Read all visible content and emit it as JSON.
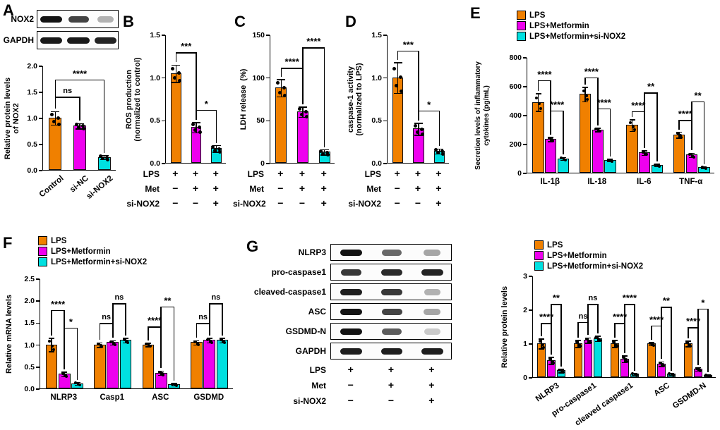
{
  "figure": {
    "background": "#ffffff",
    "series_colors": [
      "#F08000",
      "#EE00EE",
      "#00E0E0"
    ],
    "legend_labels": [
      "LPS",
      "LPS+Metformin",
      "LPS+Metformin+si-NOX2"
    ]
  },
  "panel_labels": {
    "A": "A",
    "B": "B",
    "C": "C",
    "D": "D",
    "E": "E",
    "F": "F",
    "G": "G"
  },
  "blots": {
    "A": {
      "rows": [
        {
          "label": "NOX2",
          "bands": [
            0.95,
            0.75,
            0.3
          ]
        },
        {
          "label": "GAPDH",
          "bands": [
            0.92,
            0.92,
            0.88
          ]
        }
      ]
    },
    "G": {
      "rows": [
        {
          "label": "NLRP3",
          "bands": [
            0.95,
            0.6,
            0.35
          ]
        },
        {
          "label": "pro-caspase1",
          "bands": [
            0.8,
            0.85,
            0.88
          ]
        },
        {
          "label": "cleaved-caspase1",
          "bands": [
            0.9,
            0.8,
            0.3
          ]
        },
        {
          "label": "ASC",
          "bands": [
            0.95,
            0.75,
            0.35
          ]
        },
        {
          "label": "GSDMD-N",
          "bands": [
            0.95,
            0.65,
            0.2
          ]
        },
        {
          "label": "GAPDH",
          "bands": [
            0.9,
            0.9,
            0.9
          ]
        }
      ],
      "treatment": [
        {
          "label": "LPS",
          "signs": [
            "+",
            "+",
            "+"
          ]
        },
        {
          "label": "Met",
          "signs": [
            "−",
            "+",
            "+"
          ]
        },
        {
          "label": "si-NOX2",
          "signs": [
            "−",
            "−",
            "+"
          ]
        }
      ]
    }
  },
  "chart_data": [
    {
      "id": "A",
      "type": "bar",
      "ylabel": "Relative protein levels\nof NOX2",
      "ylim": [
        0,
        2
      ],
      "yticks": [
        "0.0",
        "0.5",
        "1.0",
        "1.5",
        "2.0"
      ],
      "categories": [
        "Control",
        "si-NC",
        "si-NOX2"
      ],
      "cat_rotate": 40,
      "values": [
        1.0,
        0.85,
        0.25
      ],
      "errors": [
        0.13,
        0.05,
        0.04
      ],
      "significance": [
        {
          "b1": 0,
          "b2": 1,
          "y": 1.42,
          "label": "ns"
        },
        {
          "b1": 0,
          "b2": 2,
          "y": 1.75,
          "label": "****"
        }
      ]
    },
    {
      "id": "B",
      "type": "bar",
      "ylabel": "ROS production\n(normalized to control)",
      "ylim": [
        0,
        1.5
      ],
      "yticks": [
        "0.0",
        "0.5",
        "1.0",
        "1.5"
      ],
      "values": [
        1.05,
        0.42,
        0.17
      ],
      "errors": [
        0.1,
        0.06,
        0.04
      ],
      "treatment": [
        {
          "label": "LPS",
          "signs": [
            "+",
            "+",
            "+"
          ]
        },
        {
          "label": "Met",
          "signs": [
            "−",
            "+",
            "+"
          ]
        },
        {
          "label": "si-NOX2",
          "signs": [
            "−",
            "−",
            "+"
          ]
        }
      ],
      "significance": [
        {
          "b1": 0,
          "b2": 1,
          "y": 1.3,
          "label": "***"
        },
        {
          "b1": 1,
          "b2": 2,
          "y": 0.63,
          "label": "*"
        }
      ]
    },
    {
      "id": "C",
      "type": "bar",
      "ylabel": "LDH release  (%)",
      "ylim": [
        0,
        150
      ],
      "yticks": [
        "0",
        "50",
        "100",
        "150"
      ],
      "values": [
        88,
        60,
        13
      ],
      "errors": [
        10,
        6,
        3
      ],
      "treatment": [
        {
          "label": "LPS",
          "signs": [
            "+",
            "+",
            "+"
          ]
        },
        {
          "label": "Met",
          "signs": [
            "−",
            "+",
            "+"
          ]
        },
        {
          "label": "si-NOX2",
          "signs": [
            "−",
            "−",
            "+"
          ]
        }
      ],
      "significance": [
        {
          "b1": 0,
          "b2": 1,
          "y": 112,
          "label": "****"
        },
        {
          "b1": 1,
          "b2": 2,
          "y": 136,
          "label": "****"
        }
      ]
    },
    {
      "id": "D",
      "type": "bar",
      "ylabel": "caspase-1 activity\n(normalized to LPS)",
      "ylim": [
        0,
        1.5
      ],
      "yticks": [
        "0.0",
        "0.5",
        "1.0",
        "1.5"
      ],
      "values": [
        1.0,
        0.4,
        0.14
      ],
      "errors": [
        0.18,
        0.07,
        0.03
      ],
      "treatment": [
        {
          "label": "LPS",
          "signs": [
            "+",
            "+",
            "+"
          ]
        },
        {
          "label": "Met",
          "signs": [
            "−",
            "+",
            "+"
          ]
        },
        {
          "label": "si-NOX2",
          "signs": [
            "−",
            "−",
            "+"
          ]
        }
      ],
      "significance": [
        {
          "b1": 0,
          "b2": 1,
          "y": 1.32,
          "label": "***"
        },
        {
          "b1": 1,
          "b2": 2,
          "y": 0.62,
          "label": "*"
        }
      ]
    },
    {
      "id": "E",
      "type": "grouped_bar",
      "ylabel": "Secretion levels of inflammatory\ncytokines (pg/mL)",
      "ylim": [
        0,
        800
      ],
      "yticks": [
        "0",
        "200",
        "400",
        "600",
        "800"
      ],
      "categories": [
        "IL-1β",
        "IL-18",
        "IL-6",
        "TNF-α"
      ],
      "series": [
        {
          "name": "LPS",
          "values": [
            490,
            545,
            330,
            265
          ],
          "errors": [
            60,
            50,
            40,
            20
          ]
        },
        {
          "name": "LPS+Metformin",
          "values": [
            235,
            300,
            140,
            125
          ],
          "errors": [
            15,
            12,
            15,
            15
          ]
        },
        {
          "name": "LPS+Metformin+si-NOX2",
          "values": [
            100,
            90,
            55,
            40
          ],
          "errors": [
            10,
            8,
            8,
            6
          ]
        }
      ],
      "significance": [
        {
          "b1": 0,
          "b2": 1,
          "y": 645,
          "label": "****"
        },
        {
          "b1": 1,
          "b2": 2,
          "y": 435,
          "label": "****"
        },
        {
          "b1": 3,
          "b2": 4,
          "y": 665,
          "label": "****"
        },
        {
          "b1": 4,
          "b2": 5,
          "y": 450,
          "label": "****"
        },
        {
          "b1": 6,
          "b2": 7,
          "y": 430,
          "label": "****"
        },
        {
          "b1": 7,
          "b2": 8,
          "y": 560,
          "label": "**"
        },
        {
          "b1": 9,
          "b2": 10,
          "y": 370,
          "label": "****"
        },
        {
          "b1": 10,
          "b2": 11,
          "y": 500,
          "label": "**"
        }
      ]
    },
    {
      "id": "F",
      "type": "grouped_bar",
      "ylabel": "Relative mRNA levels",
      "ylim": [
        0,
        2.5
      ],
      "yticks": [
        "0.0",
        "0.5",
        "1.0",
        "1.5",
        "2.0",
        "2.5"
      ],
      "categories": [
        "NLRP3",
        "Casp1",
        "ASC",
        "GSDMD"
      ],
      "series": [
        {
          "name": "LPS",
          "values": [
            1.0,
            1.0,
            1.0,
            1.05
          ],
          "errors": [
            0.15,
            0.05,
            0.04,
            0.05
          ]
        },
        {
          "name": "LPS+Metformin",
          "values": [
            0.33,
            1.05,
            0.36,
            1.1
          ],
          "errors": [
            0.05,
            0.05,
            0.05,
            0.05
          ]
        },
        {
          "name": "LPS+Metformin+si-NOX2",
          "values": [
            0.12,
            1.1,
            0.1,
            1.1
          ],
          "errors": [
            0.03,
            0.05,
            0.03,
            0.05
          ]
        }
      ],
      "significance": [
        {
          "b1": 0,
          "b2": 1,
          "y": 1.8,
          "label": "****"
        },
        {
          "b1": 1,
          "b2": 2,
          "y": 1.4,
          "label": "*"
        },
        {
          "b1": 3,
          "b2": 4,
          "y": 1.5,
          "label": "ns"
        },
        {
          "b1": 4,
          "b2": 5,
          "y": 1.95,
          "label": "ns"
        },
        {
          "b1": 6,
          "b2": 7,
          "y": 1.42,
          "label": "****"
        },
        {
          "b1": 7,
          "b2": 8,
          "y": 1.88,
          "label": "**"
        },
        {
          "b1": 9,
          "b2": 10,
          "y": 1.5,
          "label": "ns"
        },
        {
          "b1": 10,
          "b2": 11,
          "y": 1.95,
          "label": "ns"
        }
      ]
    },
    {
      "id": "G",
      "type": "grouped_bar",
      "ylabel": "Relative protein levels",
      "ylim": [
        0,
        3
      ],
      "yticks": [
        "0",
        "1",
        "2",
        "3"
      ],
      "categories": [
        "NLRP3",
        "pro-caspase1",
        "cleaved caspase1",
        "ASC",
        "GSDMD-N"
      ],
      "cat_rotate": 35,
      "series": [
        {
          "name": "LPS",
          "values": [
            1.0,
            1.0,
            1.0,
            1.0,
            1.0
          ],
          "errors": [
            0.15,
            0.1,
            0.1,
            0.05,
            0.08
          ]
        },
        {
          "name": "LPS+Metformin",
          "values": [
            0.5,
            1.1,
            0.55,
            0.4,
            0.25
          ],
          "errors": [
            0.1,
            0.08,
            0.1,
            0.07,
            0.05
          ]
        },
        {
          "name": "LPS+Metformin+si-NOX2",
          "values": [
            0.2,
            1.15,
            0.1,
            0.1,
            0.07
          ],
          "errors": [
            0.05,
            0.08,
            0.03,
            0.03,
            0.02
          ]
        }
      ],
      "significance": [
        {
          "b1": 0,
          "b2": 1,
          "y": 1.62,
          "label": "****"
        },
        {
          "b1": 1,
          "b2": 2,
          "y": 2.18,
          "label": "**"
        },
        {
          "b1": 3,
          "b2": 4,
          "y": 1.65,
          "label": "ns"
        },
        {
          "b1": 4,
          "b2": 5,
          "y": 2.18,
          "label": "ns"
        },
        {
          "b1": 6,
          "b2": 7,
          "y": 1.62,
          "label": "****"
        },
        {
          "b1": 7,
          "b2": 8,
          "y": 2.18,
          "label": "****"
        },
        {
          "b1": 9,
          "b2": 10,
          "y": 1.55,
          "label": "****"
        },
        {
          "b1": 10,
          "b2": 11,
          "y": 2.1,
          "label": "**"
        },
        {
          "b1": 12,
          "b2": 13,
          "y": 1.5,
          "label": "****"
        },
        {
          "b1": 13,
          "b2": 14,
          "y": 2.05,
          "label": "*"
        }
      ]
    }
  ]
}
